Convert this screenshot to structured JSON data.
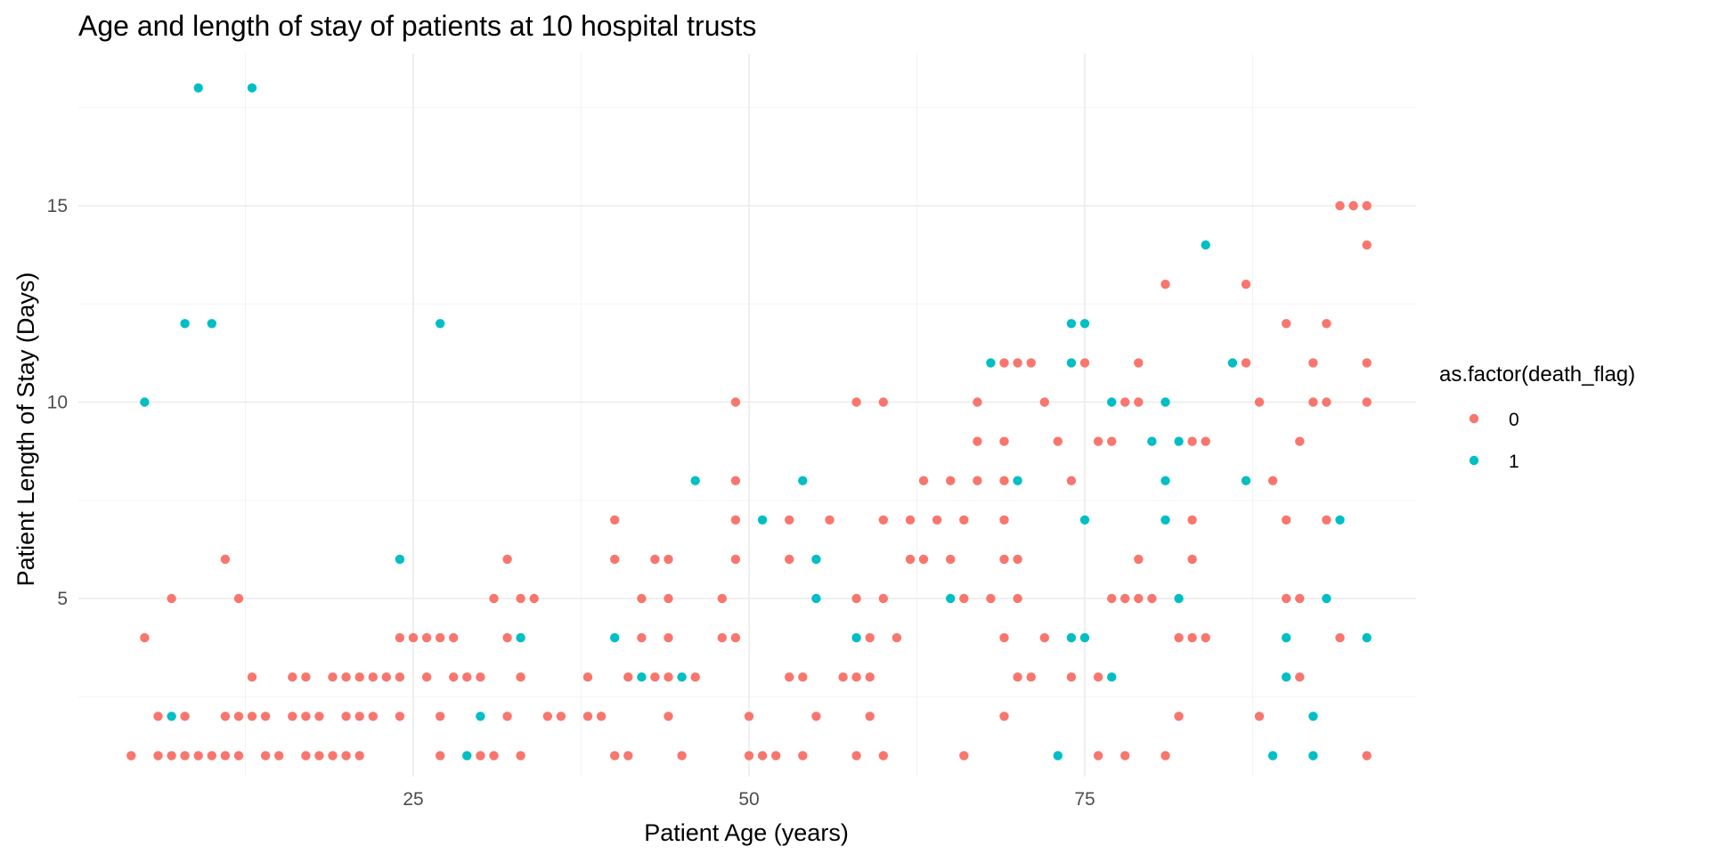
{
  "chart_data": {
    "type": "scatter",
    "title": "Age and length of stay of patients at 10 hospital trusts",
    "xlabel": "Patient Age (years)",
    "ylabel": "Patient Length of Stay (Days)",
    "xlim": [
      0,
      99
    ],
    "ylim": [
      0,
      19
    ],
    "x_ticks": [
      25,
      50,
      75
    ],
    "y_ticks": [
      5,
      10,
      15
    ],
    "x_tick_labels": [
      "25",
      "50",
      "75"
    ],
    "y_tick_labels": [
      "5",
      "10",
      "15"
    ],
    "grid": true,
    "legend": {
      "title": "as.factor(death_flag)",
      "position": "right",
      "entries": [
        "0",
        "1"
      ]
    },
    "series": [
      {
        "name": "0",
        "color": "#F8766D",
        "points": [
          [
            4,
            1
          ],
          [
            5,
            4
          ],
          [
            6,
            2
          ],
          [
            6,
            1
          ],
          [
            7,
            5
          ],
          [
            7,
            1
          ],
          [
            8,
            1
          ],
          [
            8,
            2
          ],
          [
            9,
            1
          ],
          [
            10,
            1
          ],
          [
            11,
            6
          ],
          [
            11,
            2
          ],
          [
            11,
            1
          ],
          [
            12,
            5
          ],
          [
            12,
            2
          ],
          [
            12,
            1
          ],
          [
            13,
            3
          ],
          [
            13,
            2
          ],
          [
            14,
            2
          ],
          [
            14,
            1
          ],
          [
            15,
            1
          ],
          [
            16,
            3
          ],
          [
            16,
            2
          ],
          [
            17,
            3
          ],
          [
            17,
            2
          ],
          [
            17,
            1
          ],
          [
            18,
            2
          ],
          [
            18,
            1
          ],
          [
            19,
            3
          ],
          [
            19,
            1
          ],
          [
            20,
            3
          ],
          [
            20,
            2
          ],
          [
            20,
            1
          ],
          [
            21,
            3
          ],
          [
            21,
            2
          ],
          [
            21,
            1
          ],
          [
            22,
            3
          ],
          [
            22,
            2
          ],
          [
            23,
            3
          ],
          [
            24,
            4
          ],
          [
            24,
            3
          ],
          [
            24,
            2
          ],
          [
            25,
            4
          ],
          [
            26,
            4
          ],
          [
            26,
            3
          ],
          [
            27,
            4
          ],
          [
            27,
            2
          ],
          [
            27,
            1
          ],
          [
            28,
            4
          ],
          [
            28,
            3
          ],
          [
            29,
            3
          ],
          [
            30,
            3
          ],
          [
            30,
            1
          ],
          [
            31,
            5
          ],
          [
            31,
            1
          ],
          [
            32,
            6
          ],
          [
            32,
            4
          ],
          [
            32,
            2
          ],
          [
            33,
            5
          ],
          [
            33,
            3
          ],
          [
            33,
            1
          ],
          [
            34,
            5
          ],
          [
            35,
            2
          ],
          [
            36,
            2
          ],
          [
            38,
            3
          ],
          [
            38,
            2
          ],
          [
            39,
            2
          ],
          [
            40,
            7
          ],
          [
            40,
            6
          ],
          [
            40,
            1
          ],
          [
            41,
            3
          ],
          [
            41,
            1
          ],
          [
            42,
            5
          ],
          [
            42,
            4
          ],
          [
            43,
            6
          ],
          [
            43,
            3
          ],
          [
            44,
            6
          ],
          [
            44,
            5
          ],
          [
            44,
            4
          ],
          [
            44,
            3
          ],
          [
            44,
            2
          ],
          [
            45,
            1
          ],
          [
            46,
            3
          ],
          [
            48,
            5
          ],
          [
            48,
            4
          ],
          [
            49,
            10
          ],
          [
            49,
            8
          ],
          [
            49,
            7
          ],
          [
            49,
            6
          ],
          [
            49,
            4
          ],
          [
            50,
            2
          ],
          [
            50,
            1
          ],
          [
            51,
            1
          ],
          [
            52,
            1
          ],
          [
            53,
            7
          ],
          [
            53,
            6
          ],
          [
            53,
            3
          ],
          [
            54,
            3
          ],
          [
            54,
            1
          ],
          [
            55,
            2
          ],
          [
            56,
            7
          ],
          [
            57,
            3
          ],
          [
            58,
            10
          ],
          [
            58,
            5
          ],
          [
            58,
            3
          ],
          [
            58,
            1
          ],
          [
            59,
            4
          ],
          [
            59,
            3
          ],
          [
            59,
            2
          ],
          [
            60,
            10
          ],
          [
            60,
            7
          ],
          [
            60,
            5
          ],
          [
            60,
            1
          ],
          [
            61,
            4
          ],
          [
            62,
            7
          ],
          [
            62,
            6
          ],
          [
            63,
            8
          ],
          [
            63,
            6
          ],
          [
            64,
            7
          ],
          [
            65,
            8
          ],
          [
            65,
            6
          ],
          [
            66,
            7
          ],
          [
            66,
            5
          ],
          [
            66,
            1
          ],
          [
            67,
            10
          ],
          [
            67,
            9
          ],
          [
            67,
            8
          ],
          [
            68,
            5
          ],
          [
            69,
            11
          ],
          [
            69,
            9
          ],
          [
            69,
            8
          ],
          [
            69,
            7
          ],
          [
            69,
            6
          ],
          [
            69,
            4
          ],
          [
            69,
            2
          ],
          [
            70,
            11
          ],
          [
            70,
            6
          ],
          [
            70,
            5
          ],
          [
            70,
            3
          ],
          [
            71,
            11
          ],
          [
            71,
            3
          ],
          [
            72,
            10
          ],
          [
            72,
            4
          ],
          [
            73,
            9
          ],
          [
            74,
            8
          ],
          [
            74,
            3
          ],
          [
            75,
            11
          ],
          [
            76,
            3
          ],
          [
            76,
            1
          ],
          [
            76,
            9
          ],
          [
            77,
            9
          ],
          [
            77,
            5
          ],
          [
            78,
            10
          ],
          [
            78,
            5
          ],
          [
            78,
            1
          ],
          [
            79,
            11
          ],
          [
            79,
            10
          ],
          [
            79,
            6
          ],
          [
            79,
            5
          ],
          [
            80,
            5
          ],
          [
            81,
            13
          ],
          [
            81,
            1
          ],
          [
            82,
            4
          ],
          [
            82,
            2
          ],
          [
            83,
            7
          ],
          [
            83,
            6
          ],
          [
            83,
            4
          ],
          [
            83,
            9
          ],
          [
            84,
            9
          ],
          [
            84,
            4
          ],
          [
            87,
            13
          ],
          [
            87,
            11
          ],
          [
            88,
            10
          ],
          [
            88,
            2
          ],
          [
            89,
            8
          ],
          [
            90,
            12
          ],
          [
            90,
            7
          ],
          [
            90,
            5
          ],
          [
            91,
            9
          ],
          [
            91,
            5
          ],
          [
            91,
            3
          ],
          [
            92,
            11
          ],
          [
            92,
            10
          ],
          [
            93,
            12
          ],
          [
            93,
            10
          ],
          [
            93,
            7
          ],
          [
            94,
            15
          ],
          [
            94,
            4
          ],
          [
            95,
            15
          ],
          [
            96,
            15
          ],
          [
            96,
            14
          ],
          [
            96,
            11
          ],
          [
            96,
            10
          ],
          [
            96,
            1
          ]
        ]
      },
      {
        "name": "1",
        "color": "#00BFC4",
        "points": [
          [
            5,
            10
          ],
          [
            7,
            2
          ],
          [
            8,
            12
          ],
          [
            9,
            18
          ],
          [
            10,
            12
          ],
          [
            13,
            18
          ],
          [
            24,
            6
          ],
          [
            27,
            12
          ],
          [
            29,
            1
          ],
          [
            30,
            2
          ],
          [
            33,
            4
          ],
          [
            40,
            4
          ],
          [
            42,
            3
          ],
          [
            45,
            3
          ],
          [
            46,
            8
          ],
          [
            51,
            7
          ],
          [
            54,
            8
          ],
          [
            55,
            6
          ],
          [
            55,
            5
          ],
          [
            58,
            4
          ],
          [
            65,
            5
          ],
          [
            68,
            11
          ],
          [
            70,
            8
          ],
          [
            73,
            1
          ],
          [
            74,
            12
          ],
          [
            74,
            11
          ],
          [
            74,
            4
          ],
          [
            75,
            12
          ],
          [
            75,
            7
          ],
          [
            75,
            4
          ],
          [
            77,
            10
          ],
          [
            77,
            3
          ],
          [
            80,
            9
          ],
          [
            81,
            10
          ],
          [
            81,
            8
          ],
          [
            81,
            7
          ],
          [
            82,
            9
          ],
          [
            82,
            5
          ],
          [
            84,
            14
          ],
          [
            86,
            11
          ],
          [
            87,
            8
          ],
          [
            89,
            1
          ],
          [
            90,
            4
          ],
          [
            90,
            3
          ],
          [
            92,
            2
          ],
          [
            92,
            1
          ],
          [
            93,
            5
          ],
          [
            94,
            7
          ],
          [
            96,
            4
          ]
        ]
      }
    ]
  }
}
